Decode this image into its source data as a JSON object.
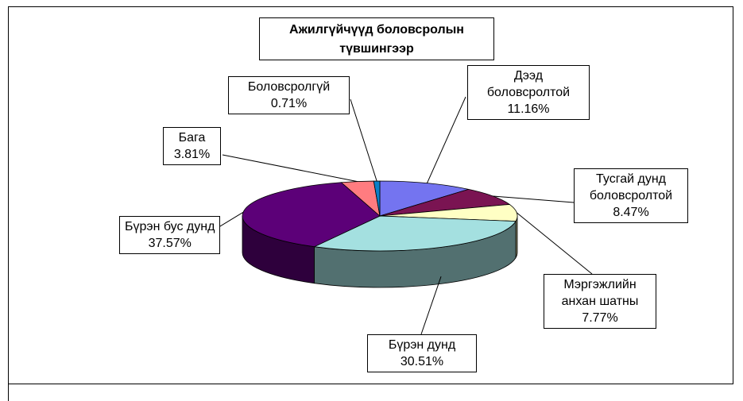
{
  "chart_data": {
    "type": "pie",
    "title": "Ажилгүйчүүд боловсролын\nтүвшингээр",
    "categories": [
      "Дээд\nболовсролтой",
      "Тусгай дунд\nболовсролтой",
      "Мэргэжлийн\nанхан шатны",
      "Бүрэн  дунд",
      "Бүрэн  бус  дунд",
      "Бага",
      "Боловсролгүй"
    ],
    "values": [
      11.16,
      8.47,
      7.77,
      30.51,
      37.57,
      3.81,
      0.71
    ],
    "value_labels": [
      "11.16%",
      "8.47%",
      "7.77%",
      "30.51%",
      "37.57%",
      "3.81%",
      "0.71%"
    ],
    "colors": [
      "#7474f0",
      "#7a1452",
      "#ffffc4",
      "#a4e0e0",
      "#5c0078",
      "#ff7c80",
      "#0a80c8"
    ]
  }
}
